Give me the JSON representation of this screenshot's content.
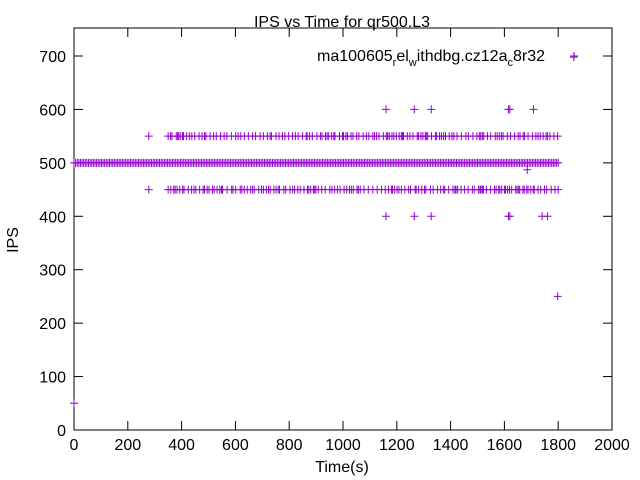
{
  "chart_data": {
    "type": "scatter",
    "title": "IPS vs Time for qr500.L3",
    "xlabel": "Time(s)",
    "ylabel": "IPS",
    "xlim": [
      0,
      2000
    ],
    "ylim": [
      0,
      720
    ],
    "xticks": [
      0,
      200,
      400,
      600,
      800,
      1000,
      1200,
      1400,
      1600,
      1800,
      2000
    ],
    "yticks": [
      0,
      100,
      200,
      300,
      400,
      500,
      600,
      700
    ],
    "legend": {
      "position": "top-right",
      "label_parts": [
        "ma100605",
        "r",
        "el",
        "w",
        "ithdbg.cz12a",
        "c",
        "8r32"
      ]
    },
    "marker": "+",
    "color": "#9400d3",
    "series": [
      {
        "points_bands": [
          {
            "y": 500,
            "x_start": 0,
            "x_end": 1800,
            "dense": true
          },
          {
            "y": 450,
            "x_start": 350,
            "x_end": 1800,
            "dense": false
          },
          {
            "y": 550,
            "x_start": 350,
            "x_end": 1800,
            "dense": false
          }
        ],
        "points": [
          [
            0,
            50
          ],
          [
            278,
            450
          ],
          [
            278,
            550
          ],
          [
            1160,
            400
          ],
          [
            1160,
            600
          ],
          [
            1265,
            400
          ],
          [
            1265,
            600
          ],
          [
            1328,
            400
          ],
          [
            1328,
            600
          ],
          [
            1615,
            400
          ],
          [
            1615,
            600
          ],
          [
            1620,
            400
          ],
          [
            1620,
            600
          ],
          [
            1708,
            600
          ],
          [
            1685,
            487
          ],
          [
            1740,
            400
          ],
          [
            1760,
            400
          ],
          [
            1798,
            250
          ],
          [
            1858,
            698
          ]
        ]
      }
    ]
  }
}
